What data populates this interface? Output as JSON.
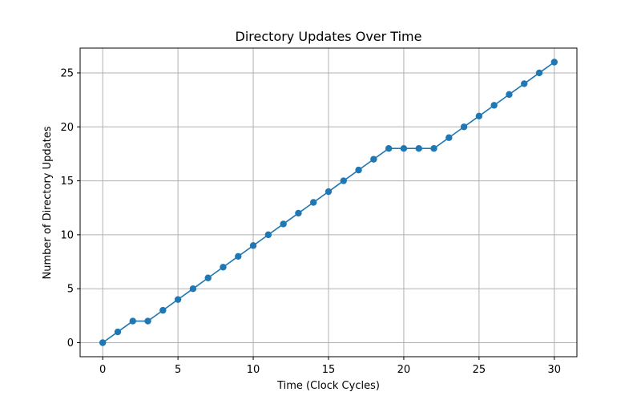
{
  "chart_data": {
    "type": "line",
    "title": "Directory Updates Over Time",
    "xlabel": "Time (Clock Cycles)",
    "ylabel": "Number of Directory Updates",
    "xlim": [
      -1.5,
      31.5
    ],
    "ylim": [
      -1.3,
      27.3
    ],
    "x_ticks": [
      0,
      5,
      10,
      15,
      20,
      25,
      30
    ],
    "y_ticks": [
      0,
      5,
      10,
      15,
      20,
      25
    ],
    "grid": true,
    "legend": "none",
    "series": [
      {
        "x": [
          0,
          1,
          2,
          3,
          4,
          5,
          6,
          7,
          8,
          9,
          10,
          11,
          12,
          13,
          14,
          15,
          16,
          17,
          18,
          19,
          20,
          21,
          22,
          23,
          24,
          25,
          26,
          27,
          28,
          29,
          30
        ],
        "values": [
          0,
          1,
          2,
          2,
          3,
          4,
          5,
          6,
          7,
          8,
          9,
          10,
          11,
          12,
          13,
          14,
          15,
          16,
          17,
          18,
          18,
          18,
          18,
          19,
          20,
          21,
          22,
          23,
          24,
          25,
          26
        ],
        "color": "#1f77b4",
        "marker": "circle"
      }
    ]
  }
}
